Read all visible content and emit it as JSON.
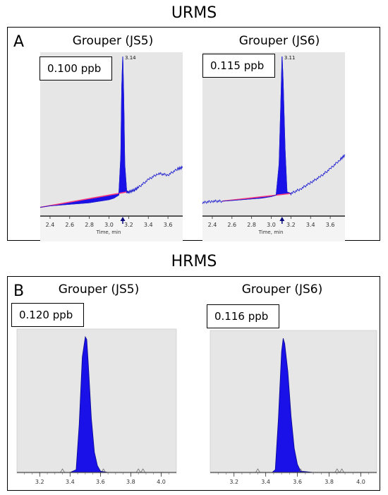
{
  "sections": [
    {
      "title": "URMS",
      "letter": "A",
      "charts": [
        {
          "title": "Grouper (JS5)",
          "concentration": "0.100 ppb",
          "peak_label": "3.14",
          "chart_data": {
            "type": "line",
            "title": "Grouper (JS5)",
            "xlabel": "Time, min",
            "xticks": [
              "2.4",
              "2.6",
              "2.8",
              "3.0",
              "3.2",
              "3.4",
              "3.6"
            ],
            "xlim": [
              2.3,
              3.75
            ],
            "peak_rt": 3.14,
            "series": [
              {
                "x": [
                  2.3,
                  2.4,
                  2.5,
                  2.6,
                  2.7,
                  2.8,
                  2.9,
                  3.0,
                  3.05,
                  3.1,
                  3.12,
                  3.13,
                  3.14,
                  3.15,
                  3.16,
                  3.18,
                  3.2,
                  3.25,
                  3.3,
                  3.4,
                  3.5,
                  3.6,
                  3.7,
                  3.75
                ],
                "y": [
                  0.02,
                  0.03,
                  0.035,
                  0.04,
                  0.045,
                  0.05,
                  0.06,
                  0.07,
                  0.08,
                  0.1,
                  0.35,
                  0.8,
                  1.0,
                  0.72,
                  0.3,
                  0.12,
                  0.12,
                  0.13,
                  0.15,
                  0.2,
                  0.24,
                  0.23,
                  0.27,
                  0.28
                ]
              }
            ]
          }
        },
        {
          "title": "Grouper (JS6)",
          "concentration": "0.115 ppb",
          "peak_label": "3.11",
          "chart_data": {
            "type": "line",
            "title": "Grouper (JS6)",
            "xlabel": "Time, min",
            "xticks": [
              "2.4",
              "2.6",
              "2.8",
              "3.0",
              "3.2",
              "3.4",
              "3.6"
            ],
            "xlim": [
              2.3,
              3.75
            ],
            "peak_rt": 3.11,
            "series": [
              {
                "x": [
                  2.3,
                  2.4,
                  2.5,
                  2.6,
                  2.7,
                  2.8,
                  2.9,
                  3.0,
                  3.05,
                  3.08,
                  3.1,
                  3.11,
                  3.12,
                  3.14,
                  3.16,
                  3.2,
                  3.3,
                  3.4,
                  3.5,
                  3.6,
                  3.7,
                  3.75
                ],
                "y": [
                  0.05,
                  0.06,
                  0.06,
                  0.065,
                  0.07,
                  0.075,
                  0.08,
                  0.09,
                  0.1,
                  0.3,
                  0.75,
                  1.0,
                  0.85,
                  0.4,
                  0.12,
                  0.11,
                  0.14,
                  0.18,
                  0.22,
                  0.27,
                  0.33,
                  0.36
                ]
              }
            ]
          }
        }
      ]
    },
    {
      "title": "HRMS",
      "letter": "B",
      "charts": [
        {
          "title": "Grouper (JS5)",
          "concentration": "0.120 ppb",
          "chart_data": {
            "type": "line",
            "title": "Grouper (JS5)",
            "xticks": [
              "3.2",
              "3.4",
              "3.6",
              "3.8",
              "4.0"
            ],
            "xlim": [
              3.05,
              4.1
            ],
            "series": [
              {
                "x": [
                  3.05,
                  3.3,
                  3.4,
                  3.44,
                  3.46,
                  3.48,
                  3.5,
                  3.51,
                  3.52,
                  3.54,
                  3.56,
                  3.58,
                  3.6,
                  3.65,
                  3.8,
                  4.1
                ],
                "y": [
                  0,
                  0,
                  0,
                  0.02,
                  0.35,
                  0.85,
                  1.0,
                  0.98,
                  0.8,
                  0.4,
                  0.15,
                  0.05,
                  0.01,
                  0,
                  0,
                  0
                ]
              }
            ]
          }
        },
        {
          "title": "Grouper (JS6)",
          "concentration": "0.116 ppb",
          "chart_data": {
            "type": "line",
            "title": "Grouper (JS6)",
            "xticks": [
              "3.2",
              "3.4",
              "3.6",
              "3.8",
              "4.0"
            ],
            "xlim": [
              3.05,
              4.1
            ],
            "series": [
              {
                "x": [
                  3.05,
                  3.3,
                  3.44,
                  3.46,
                  3.48,
                  3.5,
                  3.51,
                  3.52,
                  3.54,
                  3.56,
                  3.58,
                  3.6,
                  3.62,
                  3.7,
                  3.9,
                  4.1
                ],
                "y": [
                  0,
                  0,
                  0,
                  0.02,
                  0.4,
                  0.9,
                  1.0,
                  0.96,
                  0.75,
                  0.42,
                  0.18,
                  0.06,
                  0.01,
                  0,
                  0,
                  0
                ]
              }
            ]
          }
        }
      ]
    }
  ],
  "colors": {
    "peak_fill": "#1a10e8",
    "trace": "#2020d0",
    "plot_bg": "#e6e6e6",
    "baseline": "#ff3b7a"
  }
}
